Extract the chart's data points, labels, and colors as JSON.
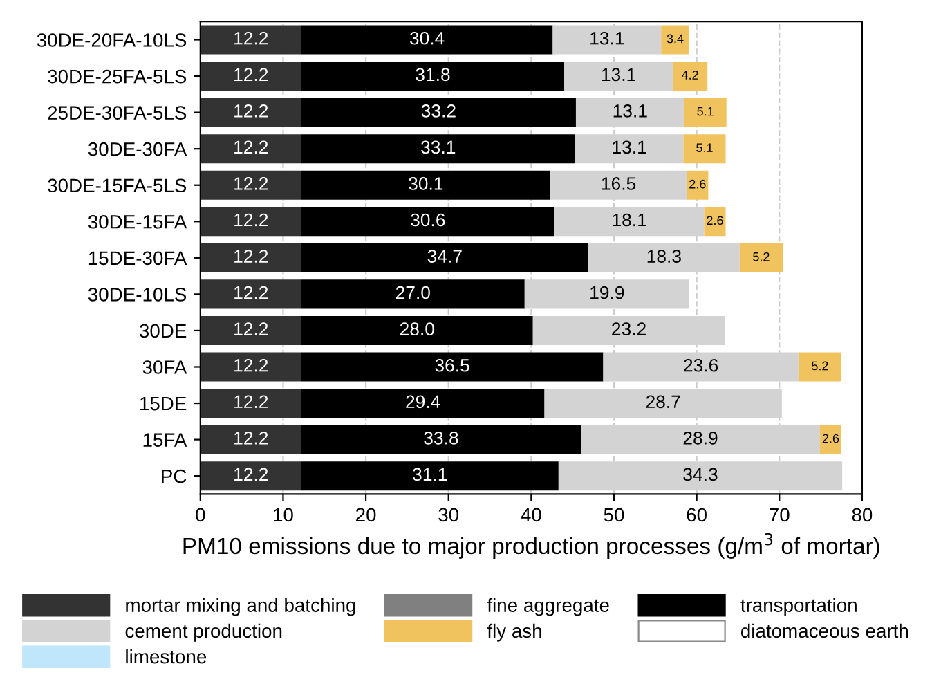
{
  "chart_data": {
    "type": "bar",
    "orientation": "horizontal",
    "stacked": true,
    "xlabel": "PM10 emissions due to major production processes (g/m$^{3}$ of mortar)",
    "categories": [
      "30DE-20FA-10LS",
      "30DE-25FA-5LS",
      "25DE-30FA-5LS",
      "30DE-30FA",
      "30DE-15FA-5LS",
      "30DE-15FA",
      "15DE-30FA",
      "30DE-10LS",
      "30DE",
      "30FA",
      "15DE",
      "15FA",
      "PC"
    ],
    "series": [
      {
        "name": "mortar mixing and batching",
        "color": "#333333",
        "values": [
          12.2,
          12.2,
          12.2,
          12.2,
          12.2,
          12.2,
          12.2,
          12.2,
          12.2,
          12.2,
          12.2,
          12.2,
          12.2
        ],
        "value_labels": [
          "12.2",
          "12.2",
          "12.2",
          "12.2",
          "12.2",
          "12.2",
          "12.2",
          "12.2",
          "12.2",
          "12.2",
          "12.2",
          "12.2",
          "12.2"
        ]
      },
      {
        "name": "fine aggregate",
        "color": "#808080",
        "values": [
          null,
          null,
          null,
          null,
          null,
          null,
          null,
          null,
          null,
          null,
          null,
          null,
          null
        ]
      },
      {
        "name": "transportation",
        "color": "#000000",
        "values": [
          30.4,
          31.8,
          33.2,
          33.1,
          30.1,
          30.6,
          34.7,
          27.0,
          28.0,
          36.5,
          29.4,
          33.8,
          31.1
        ],
        "value_labels": [
          "30.4",
          "31.8",
          "33.2",
          "33.1",
          "30.1",
          "30.6",
          "34.7",
          "27.0",
          "28.0",
          "36.5",
          "29.4",
          "33.8",
          "31.1"
        ]
      },
      {
        "name": "cement production",
        "color": "#d3d3d3",
        "values": [
          13.1,
          13.1,
          13.1,
          13.1,
          16.5,
          18.1,
          18.3,
          19.9,
          23.2,
          23.6,
          28.7,
          28.9,
          34.3
        ],
        "value_labels": [
          "13.1",
          "13.1",
          "13.1",
          "13.1",
          "16.5",
          "18.1",
          "18.3",
          "19.9",
          "23.2",
          "23.6",
          "28.7",
          "28.9",
          "34.3"
        ]
      },
      {
        "name": "fly ash",
        "color": "#f0c35f",
        "values": [
          3.4,
          4.2,
          5.1,
          5.1,
          2.6,
          2.6,
          5.2,
          null,
          null,
          5.2,
          null,
          2.6,
          null
        ],
        "value_labels": [
          "3.4",
          "4.2",
          "5.1",
          "5.1",
          "2.6",
          "2.6",
          "5.2",
          null,
          null,
          "5.2",
          null,
          "2.6",
          null
        ]
      },
      {
        "name": "diatomaceous earth",
        "color": "#ffffff",
        "values": [
          null,
          null,
          null,
          null,
          null,
          null,
          null,
          null,
          null,
          null,
          null,
          null,
          null
        ]
      },
      {
        "name": "limestone",
        "color": "#bfe6fa",
        "values": [
          null,
          null,
          null,
          null,
          null,
          null,
          null,
          null,
          null,
          null,
          null,
          null,
          null
        ]
      }
    ],
    "xlim": [
      0,
      80
    ],
    "xticks": [
      0,
      10,
      20,
      30,
      40,
      50,
      60,
      70,
      80
    ],
    "grid": "x",
    "legend": "bottom"
  }
}
